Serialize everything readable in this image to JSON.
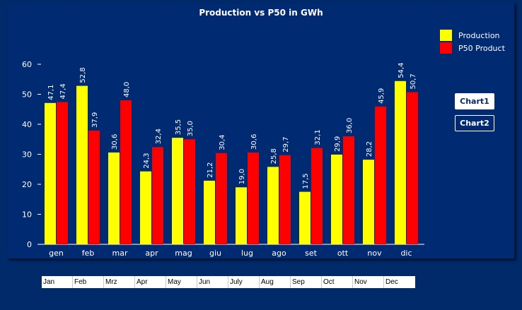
{
  "chart_data": {
    "type": "bar",
    "title": "Production vs P50 in GWh",
    "categories": [
      "gen",
      "feb",
      "mar",
      "apr",
      "mag",
      "giu",
      "lug",
      "ago",
      "set",
      "ott",
      "nov",
      "dic"
    ],
    "series": [
      {
        "name": "Production",
        "color": "#ffff00",
        "values": [
          47.1,
          52.8,
          30.6,
          24.3,
          35.5,
          21.2,
          19.0,
          25.8,
          17.5,
          29.9,
          28.2,
          54.4
        ],
        "labels": [
          "47,1",
          "52,8",
          "30,6",
          "24,3",
          "35,5",
          "21,2",
          "19,0",
          "25,8",
          "17,5",
          "29,9",
          "28,2",
          "54,4"
        ]
      },
      {
        "name": "P50 Product",
        "color": "#ff0000",
        "values": [
          47.4,
          37.9,
          48.0,
          32.4,
          35.0,
          30.4,
          30.6,
          29.7,
          32.1,
          36.0,
          45.9,
          50.7
        ],
        "labels": [
          "47,4",
          "37,9",
          "48,0",
          "32,4",
          "35,0",
          "30,4",
          "30,6",
          "29,7",
          "32,1",
          "36,0",
          "45,9",
          "50,7"
        ]
      }
    ],
    "yticks": [
      0,
      10,
      20,
      30,
      40,
      50,
      60
    ],
    "ylim": [
      0,
      60
    ],
    "xlabel": "",
    "ylabel": "",
    "legend": "top-right",
    "grid": false
  },
  "buttons": {
    "chart1": "Chart1",
    "chart2": "Chart2"
  },
  "month_strip": [
    "Jan",
    "Feb",
    "Mrz",
    "Apr",
    "May",
    "Jun",
    "July",
    "Aug",
    "Sep",
    "Oct",
    "Nov",
    "Dec"
  ]
}
